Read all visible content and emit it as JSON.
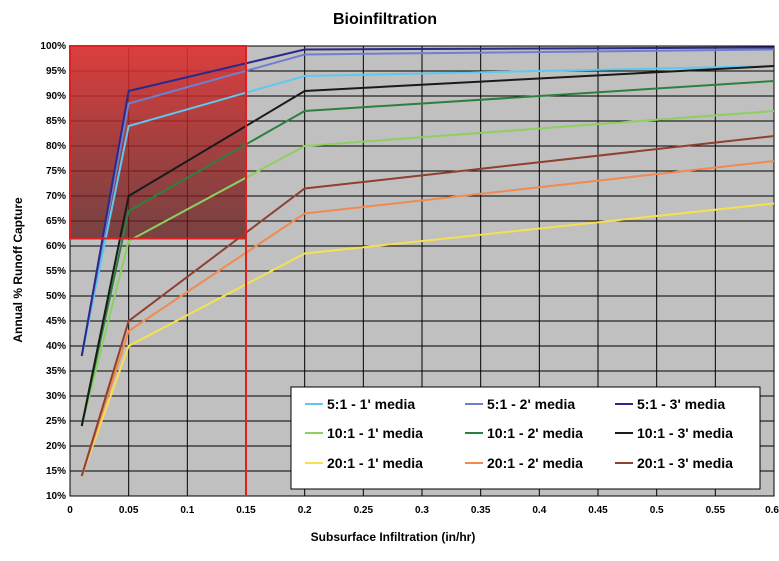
{
  "chart_data": {
    "type": "line",
    "title": "Bioinfiltration",
    "xlabel": "Subsurface Infiltration (in/hr)",
    "ylabel": "Annual % Runoff Capture",
    "xlim": [
      0,
      0.6
    ],
    "ylim": [
      10,
      100
    ],
    "x_ticks": [
      0,
      0.05,
      0.1,
      0.15,
      0.2,
      0.25,
      0.3,
      0.35,
      0.4,
      0.45,
      0.5,
      0.55,
      0.6
    ],
    "x_tick_labels": [
      "0",
      "0.05",
      "0.1",
      "0.15",
      "0.2",
      "0.25",
      "0.3",
      "0.35",
      "0.4",
      "0.45",
      "0.5",
      "0.55",
      "0.6"
    ],
    "y_ticks": [
      10,
      15,
      20,
      25,
      30,
      35,
      40,
      45,
      50,
      55,
      60,
      65,
      70,
      75,
      80,
      85,
      90,
      95,
      100
    ],
    "y_tick_labels": [
      "10%",
      "15%",
      "20%",
      "25%",
      "30%",
      "35%",
      "40%",
      "45%",
      "50%",
      "55%",
      "60%",
      "65%",
      "70%",
      "75%",
      "80%",
      "85%",
      "90%",
      "95%",
      "100%"
    ],
    "grid": true,
    "background": "#c0c0c0",
    "legend_position": "bottom-right",
    "series": [
      {
        "name": "5:1 - 1' media",
        "color": "#5ec8f0",
        "x": [
          0.01,
          0.05,
          0.2,
          0.6
        ],
        "y": [
          38,
          84,
          94,
          96
        ]
      },
      {
        "name": "5:1 - 2' media",
        "color": "#6f7fd0",
        "x": [
          0.01,
          0.05,
          0.2,
          0.6
        ],
        "y": [
          38,
          88.5,
          98.3,
          99.3
        ]
      },
      {
        "name": "5:1 - 3' media",
        "color": "#2a2a8a",
        "x": [
          0.01,
          0.05,
          0.2,
          0.6
        ],
        "y": [
          38,
          91,
          99.3,
          99.7
        ]
      },
      {
        "name": "10:1 - 1' media",
        "color": "#8ed060",
        "x": [
          0.01,
          0.05,
          0.2,
          0.6
        ],
        "y": [
          24,
          61,
          80,
          87
        ]
      },
      {
        "name": "10:1 - 2' media",
        "color": "#2e8040",
        "x": [
          0.01,
          0.05,
          0.2,
          0.6
        ],
        "y": [
          24,
          67,
          87,
          93
        ]
      },
      {
        "name": "10:1 - 3' media",
        "color": "#1a1a1a",
        "x": [
          0.01,
          0.05,
          0.2,
          0.6
        ],
        "y": [
          24,
          70,
          91,
          96
        ]
      },
      {
        "name": "20:1 - 1' media",
        "color": "#f5e050",
        "x": [
          0.01,
          0.05,
          0.2,
          0.6
        ],
        "y": [
          14,
          40,
          58.5,
          68.5
        ]
      },
      {
        "name": "20:1 - 2' media",
        "color": "#f08a50",
        "x": [
          0.01,
          0.05,
          0.2,
          0.6
        ],
        "y": [
          14,
          43,
          66.5,
          77
        ]
      },
      {
        "name": "20:1 - 3' media",
        "color": "#904030",
        "x": [
          0.01,
          0.05,
          0.2,
          0.6
        ],
        "y": [
          14,
          45,
          71.5,
          82
        ]
      }
    ],
    "annotations": {
      "shaded_region": {
        "x": [
          0,
          0.15
        ],
        "y": [
          61.5,
          100
        ],
        "color": "#e03030"
      },
      "vertical_line_x": 0.15,
      "horizontal_line_y": 61.5,
      "line_color": "#e02020"
    }
  }
}
